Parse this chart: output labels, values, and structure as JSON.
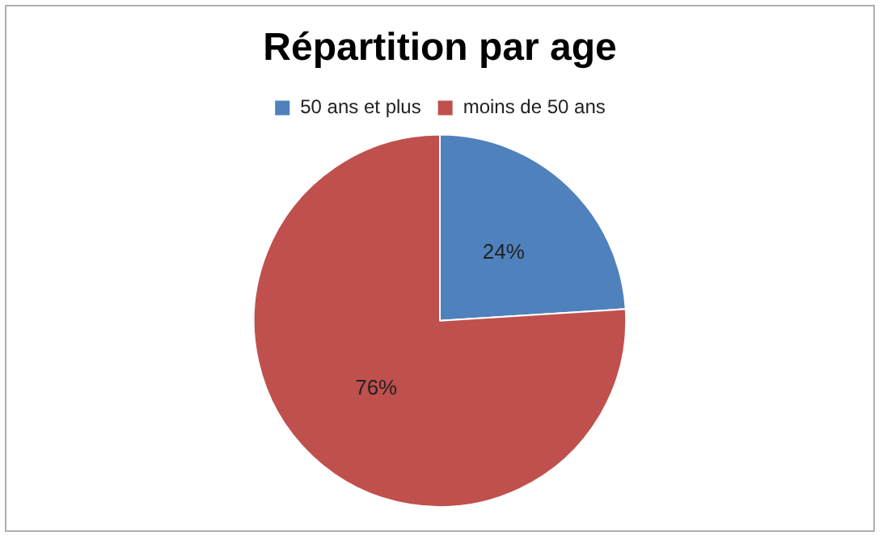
{
  "chart_data": {
    "type": "pie",
    "title": "Répartition par age",
    "categories": [
      "50 ans et plus",
      "moins de 50 ans"
    ],
    "values": [
      24,
      76
    ],
    "colors": [
      "#4f81bd",
      "#c0504d"
    ],
    "value_labels": [
      "24%",
      "76%"
    ],
    "legend": "top"
  }
}
